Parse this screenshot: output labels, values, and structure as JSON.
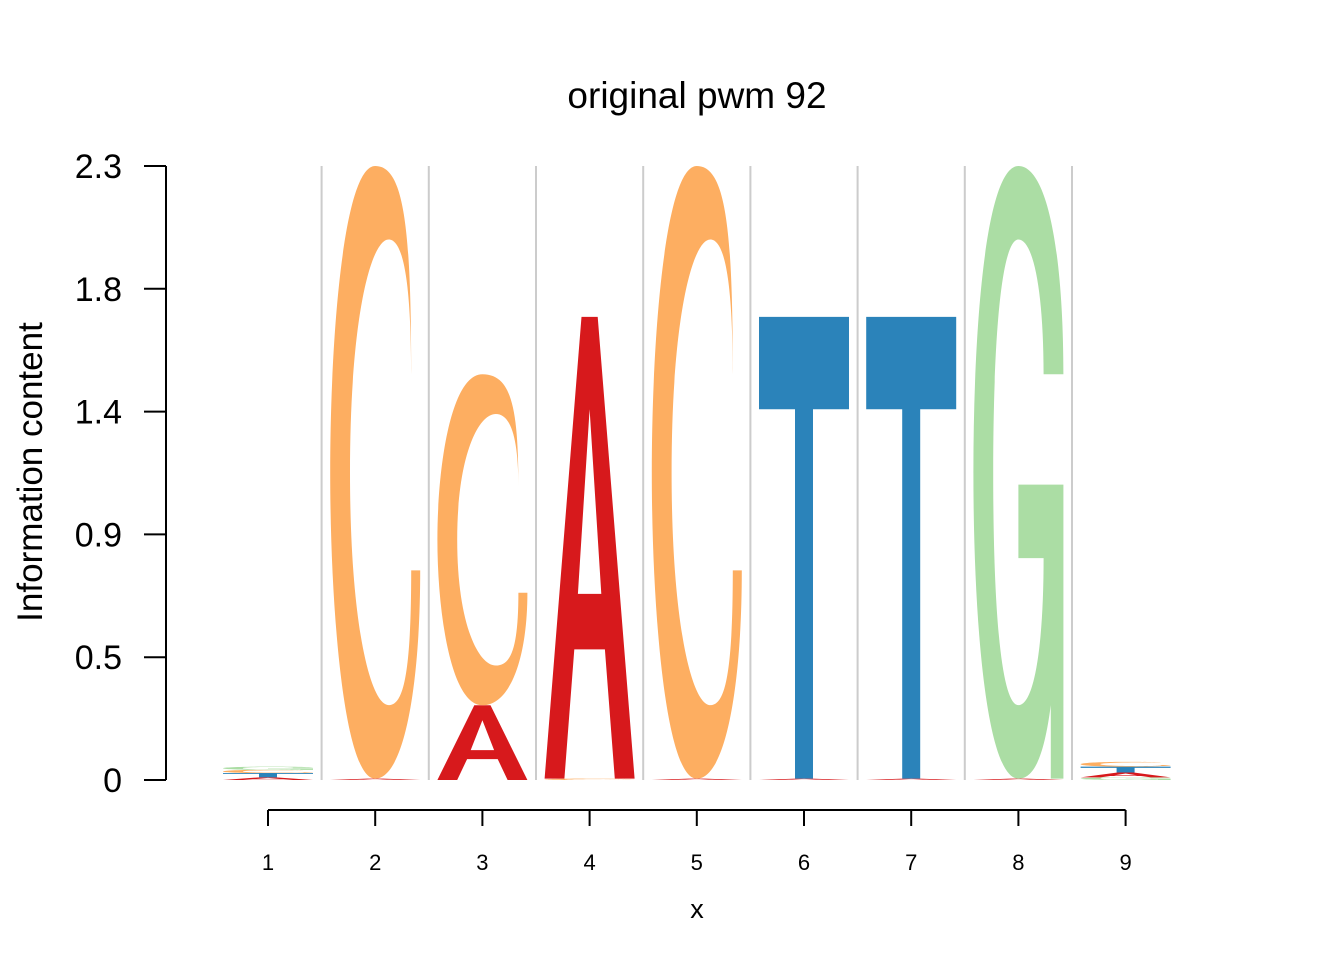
{
  "chart_data": {
    "type": "sequence-logo",
    "title": "original pwm 92",
    "xlabel": "x",
    "ylabel": "Information content",
    "ylim": [
      0,
      2.3
    ],
    "yticks": [
      "0",
      "0.5",
      "0.9",
      "1.4",
      "1.8",
      "2.3"
    ],
    "ytick_values": [
      0,
      0.46,
      0.92,
      1.38,
      1.84,
      2.3
    ],
    "xticks": [
      "1",
      "2",
      "3",
      "4",
      "5",
      "6",
      "7",
      "8",
      "9"
    ],
    "grid": "vertical separators between positions",
    "colors": {
      "A": "#d7191c",
      "C": "#fdae61",
      "G": "#abdda4",
      "T": "#2b83ba"
    },
    "positions": [
      {
        "x": "1",
        "stack": [
          {
            "letter": "A",
            "height": 0.01
          },
          {
            "letter": "T",
            "height": 0.016
          },
          {
            "letter": "C",
            "height": 0.012
          },
          {
            "letter": "G",
            "height": 0.012
          }
        ]
      },
      {
        "x": "2",
        "stack": [
          {
            "letter": "A",
            "height": 0.005
          },
          {
            "letter": "C",
            "height": 2.295
          }
        ]
      },
      {
        "x": "3",
        "stack": [
          {
            "letter": "A",
            "height": 0.28
          },
          {
            "letter": "C",
            "height": 1.24
          }
        ]
      },
      {
        "x": "4",
        "stack": [
          {
            "letter": "C",
            "height": 0.005
          },
          {
            "letter": "A",
            "height": 1.73
          }
        ]
      },
      {
        "x": "5",
        "stack": [
          {
            "letter": "A",
            "height": 0.005
          },
          {
            "letter": "C",
            "height": 2.295
          }
        ]
      },
      {
        "x": "6",
        "stack": [
          {
            "letter": "A",
            "height": 0.005
          },
          {
            "letter": "T",
            "height": 1.73
          }
        ]
      },
      {
        "x": "7",
        "stack": [
          {
            "letter": "A",
            "height": 0.005
          },
          {
            "letter": "T",
            "height": 1.73
          }
        ]
      },
      {
        "x": "8",
        "stack": [
          {
            "letter": "A",
            "height": 0.005
          },
          {
            "letter": "G",
            "height": 2.295
          }
        ]
      },
      {
        "x": "9",
        "stack": [
          {
            "letter": "G",
            "height": 0.01
          },
          {
            "letter": "A",
            "height": 0.018
          },
          {
            "letter": "T",
            "height": 0.022
          },
          {
            "letter": "C",
            "height": 0.018
          }
        ]
      }
    ]
  }
}
